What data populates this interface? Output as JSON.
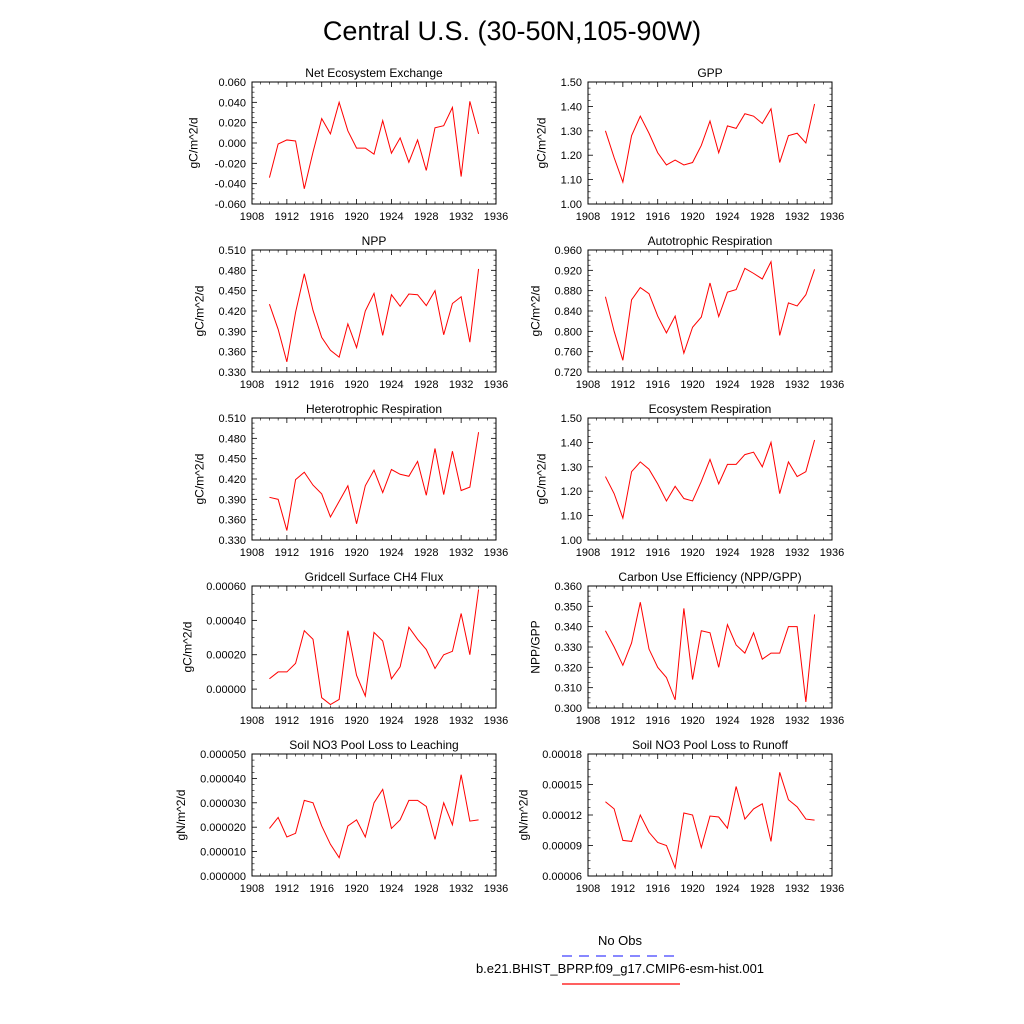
{
  "figure_title": "Central U.S. (30-50N,105-90W)",
  "legend": {
    "items": [
      {
        "label": "No Obs",
        "color": "#4040ff",
        "dash": true
      },
      {
        "label": "b.e21.BHIST_BPRP.f09_g17.CMIP6-esm-hist.001",
        "color": "#ff0000",
        "dash": false
      }
    ]
  },
  "chart_data": [
    {
      "type": "line",
      "title": "Net Ecosystem Exchange",
      "ylabel": "gC/m^2/d",
      "xlim": [
        1908,
        1936
      ],
      "xticks": [
        "1908",
        "1912",
        "1916",
        "1920",
        "1924",
        "1928",
        "1932",
        "1936"
      ],
      "ylim": [
        -0.06,
        0.06
      ],
      "yticks": [
        "-0.060",
        "-0.040",
        "-0.020",
        "0.000",
        "0.020",
        "0.040",
        "0.060"
      ],
      "color": "#ff0000",
      "x": [
        1910,
        1911,
        1912,
        1913,
        1914,
        1915,
        1916,
        1917,
        1918,
        1919,
        1920,
        1921,
        1922,
        1923,
        1924,
        1925,
        1926,
        1927,
        1928,
        1929,
        1930,
        1931,
        1932,
        1933,
        1934
      ],
      "values": [
        -0.034,
        -0.001,
        0.003,
        0.002,
        -0.045,
        -0.009,
        0.024,
        0.009,
        0.04,
        0.012,
        -0.005,
        -0.005,
        -0.011,
        0.022,
        -0.01,
        0.005,
        -0.019,
        0.003,
        -0.027,
        0.015,
        0.017,
        0.035,
        -0.033,
        0.041,
        0.009
      ]
    },
    {
      "type": "line",
      "title": "GPP",
      "ylabel": "gC/m^2/d",
      "xlim": [
        1908,
        1936
      ],
      "xticks": [
        "1908",
        "1912",
        "1916",
        "1920",
        "1924",
        "1928",
        "1932",
        "1936"
      ],
      "ylim": [
        1.0,
        1.5
      ],
      "yticks": [
        "1.00",
        "1.10",
        "1.20",
        "1.30",
        "1.40",
        "1.50"
      ],
      "color": "#ff0000",
      "x": [
        1910,
        1911,
        1912,
        1913,
        1914,
        1915,
        1916,
        1917,
        1918,
        1919,
        1920,
        1921,
        1922,
        1923,
        1924,
        1925,
        1926,
        1927,
        1928,
        1929,
        1930,
        1931,
        1932,
        1933,
        1934
      ],
      "values": [
        1.3,
        1.19,
        1.09,
        1.28,
        1.36,
        1.29,
        1.21,
        1.16,
        1.18,
        1.16,
        1.17,
        1.24,
        1.34,
        1.21,
        1.32,
        1.31,
        1.37,
        1.36,
        1.33,
        1.39,
        1.17,
        1.28,
        1.29,
        1.25,
        1.41
      ]
    },
    {
      "type": "line",
      "title": "NPP",
      "ylabel": "gC/m^2/d",
      "xlim": [
        1908,
        1936
      ],
      "xticks": [
        "1908",
        "1912",
        "1916",
        "1920",
        "1924",
        "1928",
        "1932",
        "1936"
      ],
      "ylim": [
        0.33,
        0.51
      ],
      "yticks": [
        "0.330",
        "0.360",
        "0.390",
        "0.420",
        "0.450",
        "0.480",
        "0.510"
      ],
      "color": "#ff0000",
      "x": [
        1910,
        1911,
        1912,
        1913,
        1914,
        1915,
        1916,
        1917,
        1918,
        1919,
        1920,
        1921,
        1922,
        1923,
        1924,
        1925,
        1926,
        1927,
        1928,
        1929,
        1930,
        1931,
        1932,
        1933,
        1934
      ],
      "values": [
        0.43,
        0.393,
        0.345,
        0.418,
        0.475,
        0.421,
        0.381,
        0.362,
        0.352,
        0.401,
        0.366,
        0.42,
        0.446,
        0.384,
        0.444,
        0.427,
        0.445,
        0.444,
        0.428,
        0.45,
        0.385,
        0.431,
        0.441,
        0.374,
        0.482
      ]
    },
    {
      "type": "line",
      "title": "Autotrophic Respiration",
      "ylabel": "gC/m^2/d",
      "xlim": [
        1908,
        1936
      ],
      "xticks": [
        "1908",
        "1912",
        "1916",
        "1920",
        "1924",
        "1928",
        "1932",
        "1936"
      ],
      "ylim": [
        0.72,
        0.96
      ],
      "yticks": [
        "0.720",
        "0.760",
        "0.800",
        "0.840",
        "0.880",
        "0.920",
        "0.960"
      ],
      "color": "#ff0000",
      "x": [
        1910,
        1911,
        1912,
        1913,
        1914,
        1915,
        1916,
        1917,
        1918,
        1919,
        1920,
        1921,
        1922,
        1923,
        1924,
        1925,
        1926,
        1927,
        1928,
        1929,
        1930,
        1931,
        1932,
        1933,
        1934
      ],
      "values": [
        0.868,
        0.8,
        0.743,
        0.862,
        0.886,
        0.874,
        0.83,
        0.797,
        0.83,
        0.757,
        0.808,
        0.828,
        0.895,
        0.829,
        0.877,
        0.882,
        0.924,
        0.914,
        0.903,
        0.937,
        0.792,
        0.856,
        0.85,
        0.872,
        0.922
      ]
    },
    {
      "type": "line",
      "title": "Heterotrophic Respiration",
      "ylabel": "gC/m^2/d",
      "xlim": [
        1908,
        1936
      ],
      "xticks": [
        "1908",
        "1912",
        "1916",
        "1920",
        "1924",
        "1928",
        "1932",
        "1936"
      ],
      "ylim": [
        0.33,
        0.51
      ],
      "yticks": [
        "0.330",
        "0.360",
        "0.390",
        "0.420",
        "0.450",
        "0.480",
        "0.510"
      ],
      "color": "#ff0000",
      "x": [
        1910,
        1911,
        1912,
        1913,
        1914,
        1915,
        1916,
        1917,
        1918,
        1919,
        1920,
        1921,
        1922,
        1923,
        1924,
        1925,
        1926,
        1927,
        1928,
        1929,
        1930,
        1931,
        1932,
        1933,
        1934
      ],
      "values": [
        0.393,
        0.39,
        0.344,
        0.419,
        0.43,
        0.411,
        0.398,
        0.364,
        0.387,
        0.41,
        0.354,
        0.41,
        0.433,
        0.4,
        0.434,
        0.427,
        0.424,
        0.446,
        0.396,
        0.465,
        0.397,
        0.461,
        0.403,
        0.408,
        0.489
      ]
    },
    {
      "type": "line",
      "title": "Ecosystem Respiration",
      "ylabel": "gC/m^2/d",
      "xlim": [
        1908,
        1936
      ],
      "xticks": [
        "1908",
        "1912",
        "1916",
        "1920",
        "1924",
        "1928",
        "1932",
        "1936"
      ],
      "ylim": [
        1.0,
        1.5
      ],
      "yticks": [
        "1.00",
        "1.10",
        "1.20",
        "1.30",
        "1.40",
        "1.50"
      ],
      "color": "#ff0000",
      "x": [
        1910,
        1911,
        1912,
        1913,
        1914,
        1915,
        1916,
        1917,
        1918,
        1919,
        1920,
        1921,
        1922,
        1923,
        1924,
        1925,
        1926,
        1927,
        1928,
        1929,
        1930,
        1931,
        1932,
        1933,
        1934
      ],
      "values": [
        1.26,
        1.19,
        1.09,
        1.28,
        1.32,
        1.29,
        1.23,
        1.16,
        1.22,
        1.17,
        1.16,
        1.24,
        1.33,
        1.23,
        1.31,
        1.31,
        1.35,
        1.36,
        1.3,
        1.4,
        1.19,
        1.32,
        1.26,
        1.28,
        1.41
      ]
    },
    {
      "type": "line",
      "title": "Gridcell Surface CH4 Flux",
      "ylabel": "gC/m^2/d",
      "xlim": [
        1908,
        1936
      ],
      "xticks": [
        "1908",
        "1912",
        "1916",
        "1920",
        "1924",
        "1928",
        "1932",
        "1936"
      ],
      "ylim": [
        -0.00011,
        0.0006
      ],
      "yticks": [
        "0.00000",
        "0.00020",
        "0.00040",
        "0.00060"
      ],
      "ytick_values": [
        0,
        0.0002,
        0.0004,
        0.0006
      ],
      "color": "#ff0000",
      "x": [
        1910,
        1911,
        1912,
        1913,
        1914,
        1915,
        1916,
        1917,
        1918,
        1919,
        1920,
        1921,
        1922,
        1923,
        1924,
        1925,
        1926,
        1927,
        1928,
        1929,
        1930,
        1931,
        1932,
        1933,
        1934
      ],
      "values": [
        6e-05,
        0.0001,
        0.0001,
        0.00015,
        0.00034,
        0.00029,
        -5e-05,
        -9e-05,
        -6e-05,
        0.00034,
        8e-05,
        -4e-05,
        0.00033,
        0.00028,
        6e-05,
        0.00013,
        0.00036,
        0.00029,
        0.00023,
        0.00012,
        0.0002,
        0.00022,
        0.00044,
        0.0002,
        0.00058
      ]
    },
    {
      "type": "line",
      "title": "Carbon Use Efficiency (NPP/GPP)",
      "ylabel": "NPP/GPP",
      "xlim": [
        1908,
        1936
      ],
      "xticks": [
        "1908",
        "1912",
        "1916",
        "1920",
        "1924",
        "1928",
        "1932",
        "1936"
      ],
      "ylim": [
        0.3,
        0.36
      ],
      "yticks": [
        "0.300",
        "0.310",
        "0.320",
        "0.330",
        "0.340",
        "0.350",
        "0.360"
      ],
      "color": "#ff0000",
      "x": [
        1910,
        1911,
        1912,
        1913,
        1914,
        1915,
        1916,
        1917,
        1918,
        1919,
        1920,
        1921,
        1922,
        1923,
        1924,
        1925,
        1926,
        1927,
        1928,
        1929,
        1930,
        1931,
        1932,
        1933,
        1934
      ],
      "values": [
        0.338,
        0.33,
        0.321,
        0.332,
        0.352,
        0.329,
        0.32,
        0.315,
        0.304,
        0.349,
        0.314,
        0.338,
        0.337,
        0.32,
        0.341,
        0.331,
        0.327,
        0.337,
        0.324,
        0.327,
        0.327,
        0.34,
        0.34,
        0.303,
        0.346
      ]
    },
    {
      "type": "line",
      "title": "Soil NO3 Pool Loss to Leaching",
      "ylabel": "gN/m^2/d",
      "xlim": [
        1908,
        1936
      ],
      "xticks": [
        "1908",
        "1912",
        "1916",
        "1920",
        "1924",
        "1928",
        "1932",
        "1936"
      ],
      "ylim": [
        0.0,
        5e-05
      ],
      "yticks": [
        "0.000000",
        "0.000010",
        "0.000020",
        "0.000030",
        "0.000040",
        "0.000050"
      ],
      "color": "#ff0000",
      "x": [
        1910,
        1911,
        1912,
        1913,
        1914,
        1915,
        1916,
        1917,
        1918,
        1919,
        1920,
        1921,
        1922,
        1923,
        1924,
        1925,
        1926,
        1927,
        1928,
        1929,
        1930,
        1931,
        1932,
        1933,
        1934
      ],
      "values": [
        1.95e-05,
        2.4e-05,
        1.6e-05,
        1.75e-05,
        3.1e-05,
        3e-05,
        2.05e-05,
        1.3e-05,
        7.5e-06,
        2.05e-05,
        2.3e-05,
        1.6e-05,
        3e-05,
        3.55e-05,
        1.95e-05,
        2.3e-05,
        3.1e-05,
        3.1e-05,
        2.85e-05,
        1.5e-05,
        3e-05,
        2.1e-05,
        4.15e-05,
        2.25e-05,
        2.3e-05
      ]
    },
    {
      "type": "line",
      "title": "Soil NO3 Pool Loss to Runoff",
      "ylabel": "gN/m^2/d",
      "xlim": [
        1908,
        1936
      ],
      "xticks": [
        "1908",
        "1912",
        "1916",
        "1920",
        "1924",
        "1928",
        "1932",
        "1936"
      ],
      "ylim": [
        6e-05,
        0.00018
      ],
      "yticks": [
        "0.00006",
        "0.00009",
        "0.00012",
        "0.00015",
        "0.00018"
      ],
      "color": "#ff0000",
      "x": [
        1910,
        1911,
        1912,
        1913,
        1914,
        1915,
        1916,
        1917,
        1918,
        1919,
        1920,
        1921,
        1922,
        1923,
        1924,
        1925,
        1926,
        1927,
        1928,
        1929,
        1930,
        1931,
        1932,
        1933,
        1934
      ],
      "values": [
        0.000133,
        0.000126,
        9.5e-05,
        9.4e-05,
        0.00012,
        0.000103,
        9.3e-05,
        9e-05,
        6.8e-05,
        0.000122,
        0.00012,
        8.8e-05,
        0.000119,
        0.000118,
        0.000107,
        0.000148,
        0.000116,
        0.000126,
        0.000131,
        9.4e-05,
        0.000162,
        0.000135,
        0.000128,
        0.000116,
        0.000115
      ]
    }
  ]
}
